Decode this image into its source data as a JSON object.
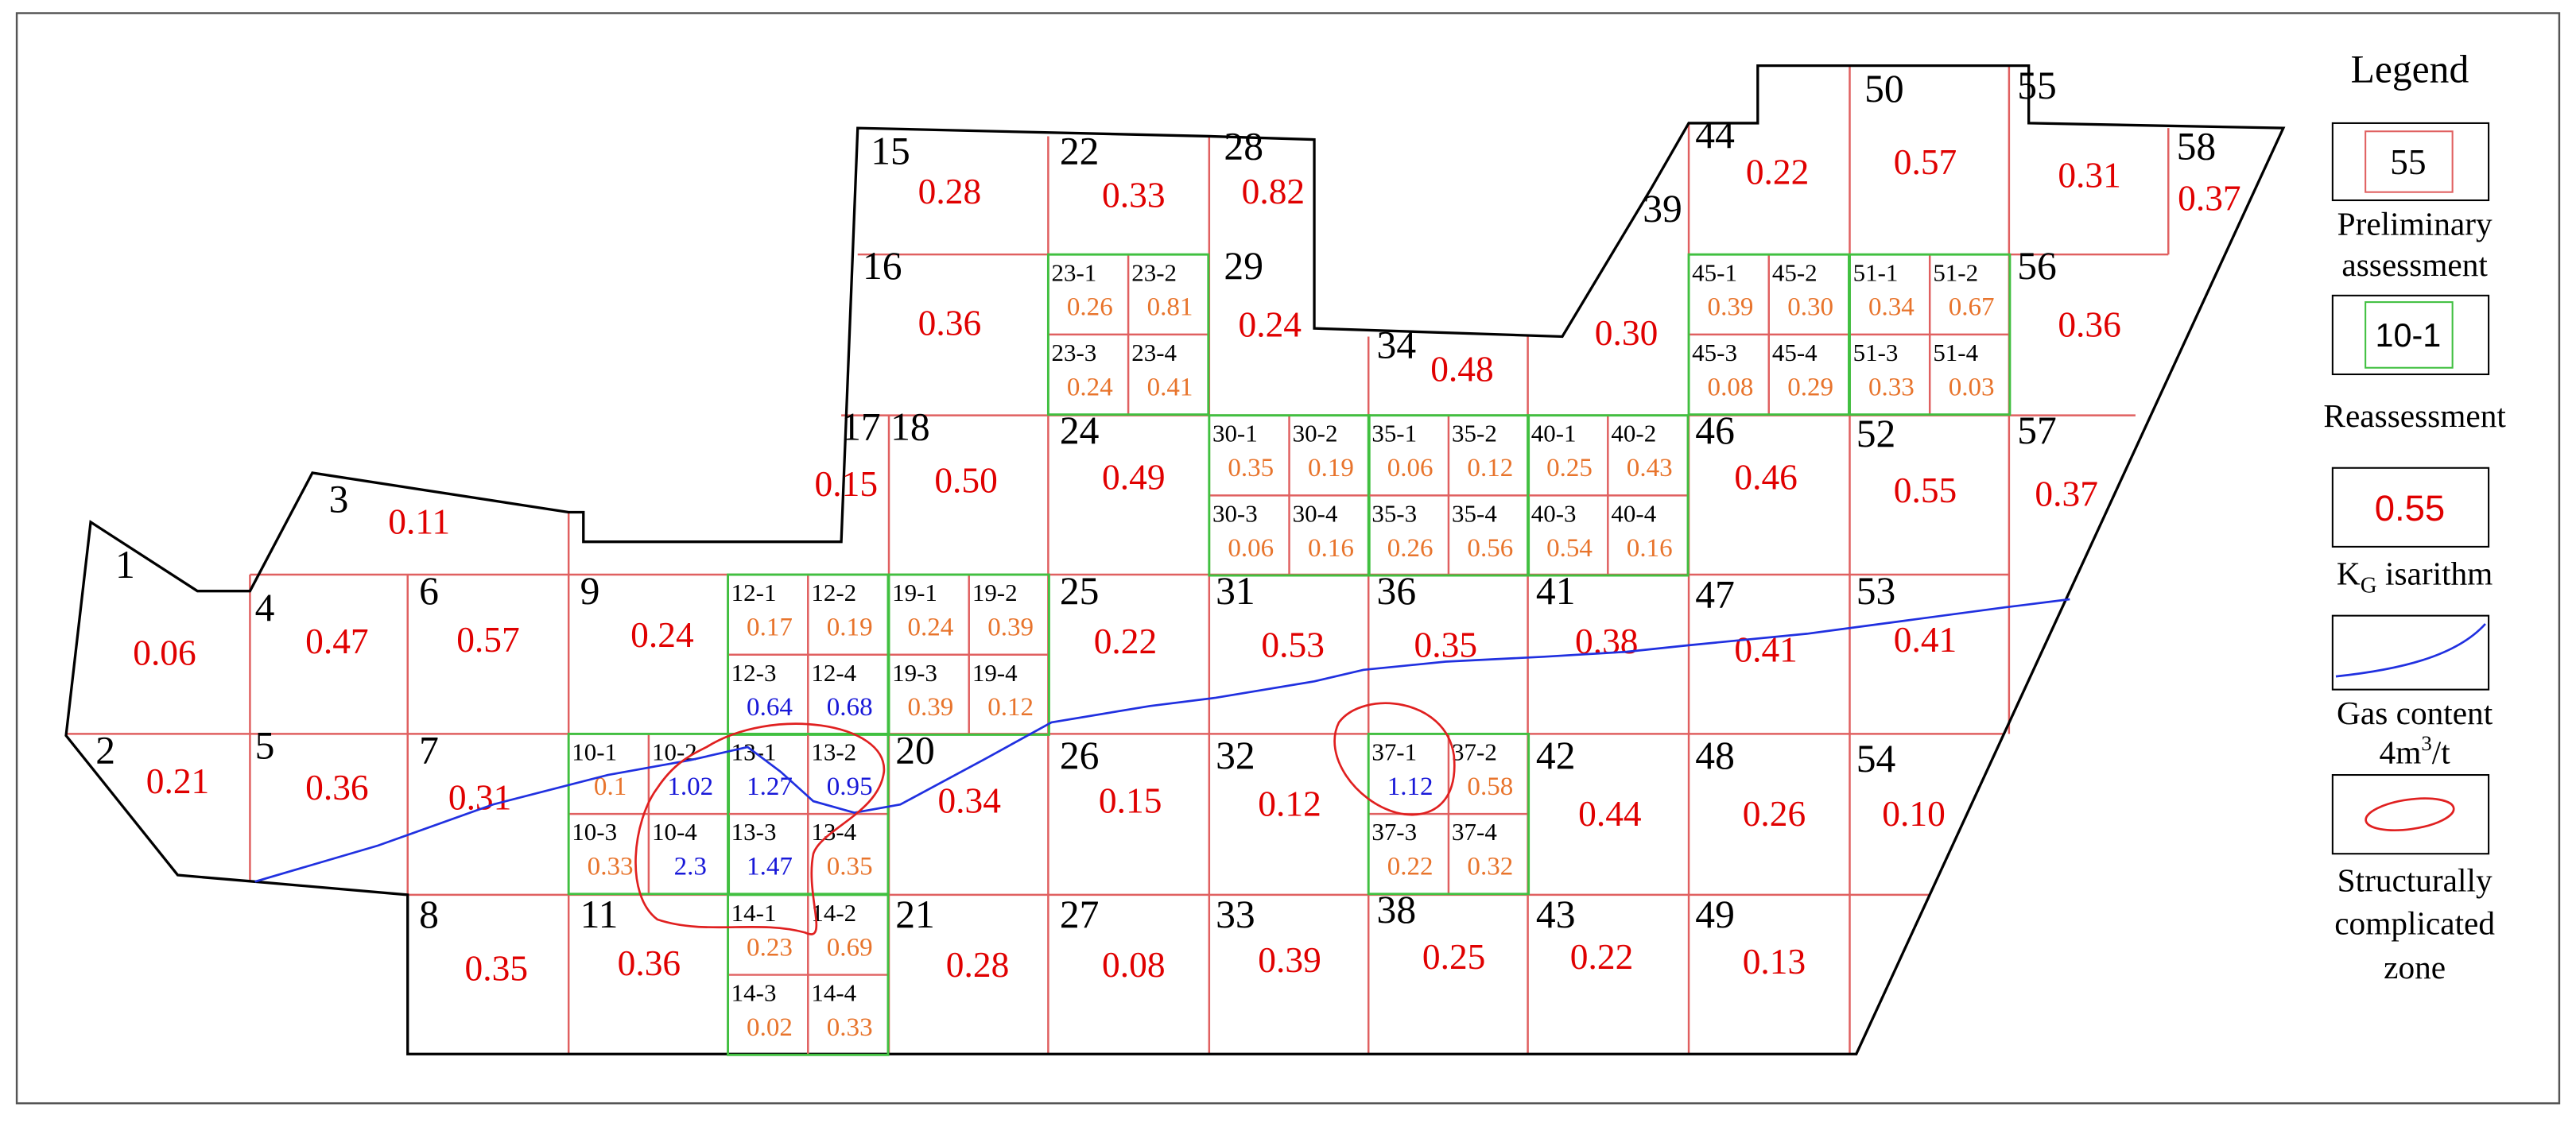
{
  "legend": {
    "title": "Legend",
    "items": [
      {
        "sample": "55",
        "lines": [
          "Preliminary",
          "assessment"
        ]
      },
      {
        "sample": "10-1",
        "lines": [
          "Reassessment"
        ]
      },
      {
        "sample": "0.55",
        "label_main": "K",
        "label_sub": "G",
        "label_rest": " isarithm"
      },
      {
        "lines": [
          "Gas content"
        ],
        "unit_main": "4m",
        "unit_sup": "3",
        "unit_rest": "/t"
      },
      {
        "lines": [
          "Structurally",
          "complicated",
          "zone"
        ]
      }
    ]
  },
  "blocks": [
    {
      "id": "1",
      "value": "0.06"
    },
    {
      "id": "2",
      "value": "0.21"
    },
    {
      "id": "3",
      "value": "0.11"
    },
    {
      "id": "4",
      "value": "0.47"
    },
    {
      "id": "5",
      "value": "0.36"
    },
    {
      "id": "6",
      "value": "0.57"
    },
    {
      "id": "7",
      "value": "0.31"
    },
    {
      "id": "8",
      "value": "0.35"
    },
    {
      "id": "9",
      "value": "0.24"
    },
    {
      "id": "11",
      "value": "0.36"
    },
    {
      "id": "15",
      "value": "0.28"
    },
    {
      "id": "16",
      "value": "0.36"
    },
    {
      "id": "17",
      "value": "0.15"
    },
    {
      "id": "18",
      "value": "0.50"
    },
    {
      "id": "20",
      "value": "0.34"
    },
    {
      "id": "21",
      "value": "0.28"
    },
    {
      "id": "22",
      "value": "0.33"
    },
    {
      "id": "24",
      "value": "0.49"
    },
    {
      "id": "25",
      "value": "0.22"
    },
    {
      "id": "26",
      "value": "0.15"
    },
    {
      "id": "27",
      "value": "0.08"
    },
    {
      "id": "28",
      "value": "0.82"
    },
    {
      "id": "29",
      "value": "0.24"
    },
    {
      "id": "31",
      "value": "0.53"
    },
    {
      "id": "32",
      "value": "0.12"
    },
    {
      "id": "33",
      "value": "0.39"
    },
    {
      "id": "34",
      "value": "0.48"
    },
    {
      "id": "36",
      "value": "0.35"
    },
    {
      "id": "38",
      "value": "0.25"
    },
    {
      "id": "39",
      "value": "0.30"
    },
    {
      "id": "41",
      "value": "0.38"
    },
    {
      "id": "42",
      "value": "0.44"
    },
    {
      "id": "43",
      "value": "0.22"
    },
    {
      "id": "44",
      "value": "0.22"
    },
    {
      "id": "46",
      "value": "0.46"
    },
    {
      "id": "47",
      "value": "0.41"
    },
    {
      "id": "48",
      "value": "0.26"
    },
    {
      "id": "49",
      "value": "0.13"
    },
    {
      "id": "50",
      "value": "0.57"
    },
    {
      "id": "52",
      "value": "0.55"
    },
    {
      "id": "53",
      "value": "0.41"
    },
    {
      "id": "54",
      "value": "0.10"
    },
    {
      "id": "55",
      "value": "0.31"
    },
    {
      "id": "56",
      "value": "0.36"
    },
    {
      "id": "57",
      "value": "0.37"
    },
    {
      "id": "58",
      "value": "0.37"
    }
  ],
  "sub_blocks": [
    {
      "id": "23-1",
      "value": "0.26",
      "color": "#e8742c"
    },
    {
      "id": "23-2",
      "value": "0.81",
      "color": "#e8742c"
    },
    {
      "id": "23-3",
      "value": "0.24",
      "color": "#e8742c"
    },
    {
      "id": "23-4",
      "value": "0.41",
      "color": "#e8742c"
    },
    {
      "id": "45-1",
      "value": "0.39",
      "color": "#e8742c"
    },
    {
      "id": "45-2",
      "value": "0.30",
      "color": "#e8742c"
    },
    {
      "id": "45-3",
      "value": "0.08",
      "color": "#e8742c"
    },
    {
      "id": "45-4",
      "value": "0.29",
      "color": "#e8742c"
    },
    {
      "id": "51-1",
      "value": "0.34",
      "color": "#e8742c"
    },
    {
      "id": "51-2",
      "value": "0.67",
      "color": "#e8742c"
    },
    {
      "id": "51-3",
      "value": "0.33",
      "color": "#e8742c"
    },
    {
      "id": "51-4",
      "value": "0.03",
      "color": "#e8742c"
    },
    {
      "id": "30-1",
      "value": "0.35",
      "color": "#e8742c"
    },
    {
      "id": "30-2",
      "value": "0.19",
      "color": "#e8742c"
    },
    {
      "id": "30-3",
      "value": "0.06",
      "color": "#e8742c"
    },
    {
      "id": "30-4",
      "value": "0.16",
      "color": "#e8742c"
    },
    {
      "id": "35-1",
      "value": "0.06",
      "color": "#e8742c"
    },
    {
      "id": "35-2",
      "value": "0.12",
      "color": "#e8742c"
    },
    {
      "id": "35-3",
      "value": "0.26",
      "color": "#e8742c"
    },
    {
      "id": "35-4",
      "value": "0.56",
      "color": "#e8742c"
    },
    {
      "id": "40-1",
      "value": "0.25",
      "color": "#e8742c"
    },
    {
      "id": "40-2",
      "value": "0.43",
      "color": "#e8742c"
    },
    {
      "id": "40-3",
      "value": "0.54",
      "color": "#e8742c"
    },
    {
      "id": "40-4",
      "value": "0.16",
      "color": "#e8742c"
    },
    {
      "id": "12-1",
      "value": "0.17",
      "color": "#e8742c"
    },
    {
      "id": "12-2",
      "value": "0.19",
      "color": "#e8742c"
    },
    {
      "id": "12-3",
      "value": "0.64",
      "color": "#1818d8"
    },
    {
      "id": "12-4",
      "value": "0.68",
      "color": "#1818d8"
    },
    {
      "id": "19-1",
      "value": "0.24",
      "color": "#e8742c"
    },
    {
      "id": "19-2",
      "value": "0.39",
      "color": "#e8742c"
    },
    {
      "id": "19-3",
      "value": "0.39",
      "color": "#e8742c"
    },
    {
      "id": "19-4",
      "value": "0.12",
      "color": "#e8742c"
    },
    {
      "id": "10-1",
      "value": "0.1",
      "color": "#e8742c"
    },
    {
      "id": "10-2",
      "value": "1.02",
      "color": "#1818d8"
    },
    {
      "id": "10-3",
      "value": "0.33",
      "color": "#e8742c"
    },
    {
      "id": "10-4",
      "value": "2.3",
      "color": "#1818d8"
    },
    {
      "id": "13-1",
      "value": "1.27",
      "color": "#1818d8"
    },
    {
      "id": "13-2",
      "value": "0.95",
      "color": "#1818d8"
    },
    {
      "id": "13-3",
      "value": "1.47",
      "color": "#1818d8"
    },
    {
      "id": "13-4",
      "value": "0.35",
      "color": "#e8742c"
    },
    {
      "id": "37-1",
      "value": "1.12",
      "color": "#1818d8"
    },
    {
      "id": "37-2",
      "value": "0.58",
      "color": "#e8742c"
    },
    {
      "id": "37-3",
      "value": "0.22",
      "color": "#e8742c"
    },
    {
      "id": "37-4",
      "value": "0.32",
      "color": "#e8742c"
    },
    {
      "id": "14-1",
      "value": "0.23",
      "color": "#e8742c"
    },
    {
      "id": "14-2",
      "value": "0.69",
      "color": "#e8742c"
    },
    {
      "id": "14-3",
      "value": "0.02",
      "color": "#e8742c"
    },
    {
      "id": "14-4",
      "value": "0.33",
      "color": "#e8742c"
    }
  ]
}
